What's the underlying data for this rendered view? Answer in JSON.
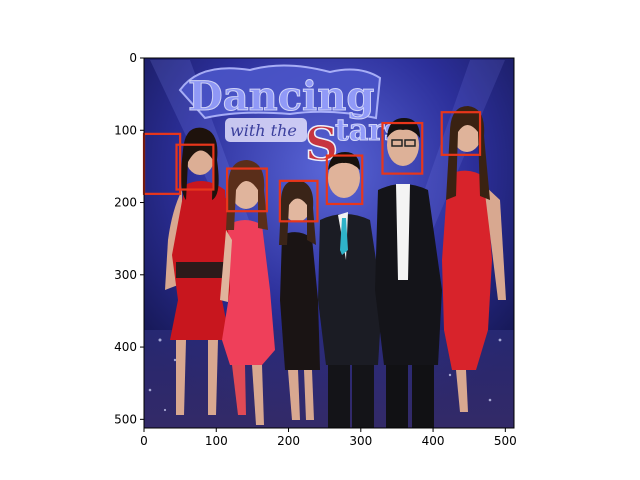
{
  "figure": {
    "x_axis": {
      "min": 0,
      "max": 512,
      "ticks": [
        0,
        100,
        200,
        300,
        400,
        500
      ],
      "labels": [
        "0",
        "100",
        "200",
        "300",
        "400",
        "500"
      ]
    },
    "y_axis": {
      "min": 0,
      "max": 512,
      "inverted": true,
      "ticks": [
        0,
        100,
        200,
        300,
        400,
        500
      ],
      "labels": [
        "0",
        "100",
        "200",
        "300",
        "400",
        "500"
      ]
    },
    "image": {
      "description": "Group photo of seven people in front of a blue stage backdrop with a show logo",
      "backdrop_text": "Dancing with the Stars"
    },
    "detection_box_color": "#e8361b",
    "face_boxes": [
      {
        "x0": 0,
        "y0": 105,
        "x1": 50,
        "y1": 188
      },
      {
        "x0": 45,
        "y0": 120,
        "x1": 96,
        "y1": 182
      },
      {
        "x0": 115,
        "y0": 153,
        "x1": 170,
        "y1": 212
      },
      {
        "x0": 188,
        "y0": 170,
        "x1": 240,
        "y1": 226
      },
      {
        "x0": 253,
        "y0": 135,
        "x1": 302,
        "y1": 202
      },
      {
        "x0": 330,
        "y0": 90,
        "x1": 385,
        "y1": 160
      },
      {
        "x0": 412,
        "y0": 75,
        "x1": 465,
        "y1": 134
      }
    ]
  }
}
